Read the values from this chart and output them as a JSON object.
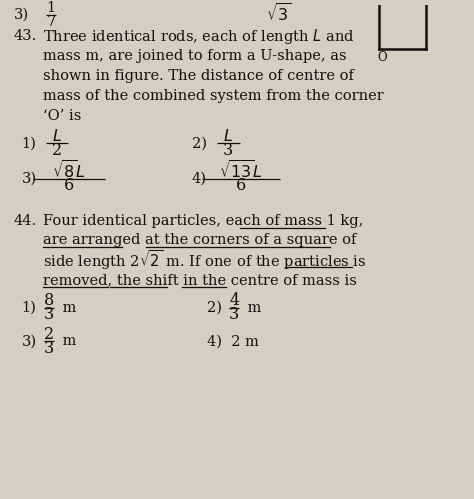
{
  "background_color": "#d4cfc4",
  "text_color": "#111111",
  "top_frac_num": "1",
  "top_frac_den": "7",
  "top_sqrt": "$\\sqrt{3}$",
  "q43_line1": "Three identical rods, each of length $L$ and",
  "q43_line2": "mass m, are joined to form a U-shape, as",
  "q43_line3": "shown in figure. The distance of centre of",
  "q43_line4": "mass of the combined system from the corner",
  "q43_line5": "‘O’ is",
  "q44_line1": "Four identical particles, each of mass 1 kg,",
  "q44_line2": "are arranged at the corners of a square of",
  "q44_line3": "side length 2$\\sqrt{2}$ m. If one of the particles is",
  "q44_line4": "removed, the shift in the centre of mass is",
  "lh": 20,
  "fs_body": 10.5,
  "fs_math": 13,
  "fs_small": 9.5
}
